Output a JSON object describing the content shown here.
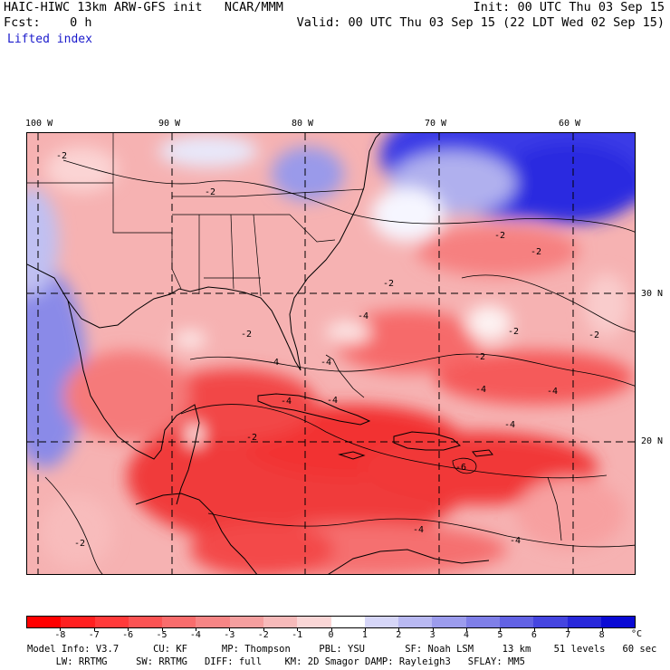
{
  "header": {
    "model_line": "HAIC-HIWC 13km ARW-GFS init   NCAR/MMM",
    "init_line": "Init: 00 UTC Thu 03 Sep 15",
    "fcst_line": "Fcst:    0 h",
    "valid_line": "Valid: 00 UTC Thu 03 Sep 15 (22 LDT Wed 02 Sep 15)",
    "field_name": "Lifted index"
  },
  "map": {
    "longitude_labels": [
      "100 W",
      "90 W",
      "80 W",
      "70 W",
      "60 W"
    ],
    "latitude_labels": [
      "30 N",
      "20 N"
    ],
    "contour_labels": [
      "-2",
      "-2",
      "-2",
      "-2",
      "-2",
      "-2",
      "-2",
      "-2",
      "-2",
      "-2",
      "-4",
      "-4",
      "-4",
      "-4",
      "-4",
      "-4",
      "-4",
      "-4",
      "-4",
      "-6",
      "-4",
      "-2"
    ],
    "colors": {
      "strong_negative": "#f01a1a",
      "negative": "#f56a6a",
      "weak_negative": "#f8b0b0",
      "neutral": "#ffffff",
      "positive": "#b4b4f0",
      "strong_positive": "#3a3ae6"
    }
  },
  "colorbar": {
    "unit": "°C",
    "tick_labels": [
      "-8",
      "-7",
      "-6",
      "-5",
      "-4",
      "-3",
      "-2",
      "-1",
      "0",
      "1",
      "2",
      "3",
      "4",
      "5",
      "6",
      "7",
      "8"
    ],
    "colors": [
      "#ff0000",
      "#ff2020",
      "#ff3a3a",
      "#fb5353",
      "#f86c6c",
      "#f68585",
      "#f59f9f",
      "#f7baba",
      "#fad6d6",
      "#ffffff",
      "#d6d6f8",
      "#b9b9f2",
      "#9c9ced",
      "#7f7fe8",
      "#6262e4",
      "#4545e0",
      "#2828da",
      "#0a0ad4"
    ]
  },
  "footer": {
    "line1": "Model Info: V3.7      CU: KF      MP: Thompson     PBL: YSU       SF: Noah LSM     13 km    51 levels   60 sec",
    "line2": "     LW: RRTMG     SW: RRTMG   DIFF: full    KM: 2D Smagor DAMP: Rayleigh3   SFLAY: MM5"
  }
}
